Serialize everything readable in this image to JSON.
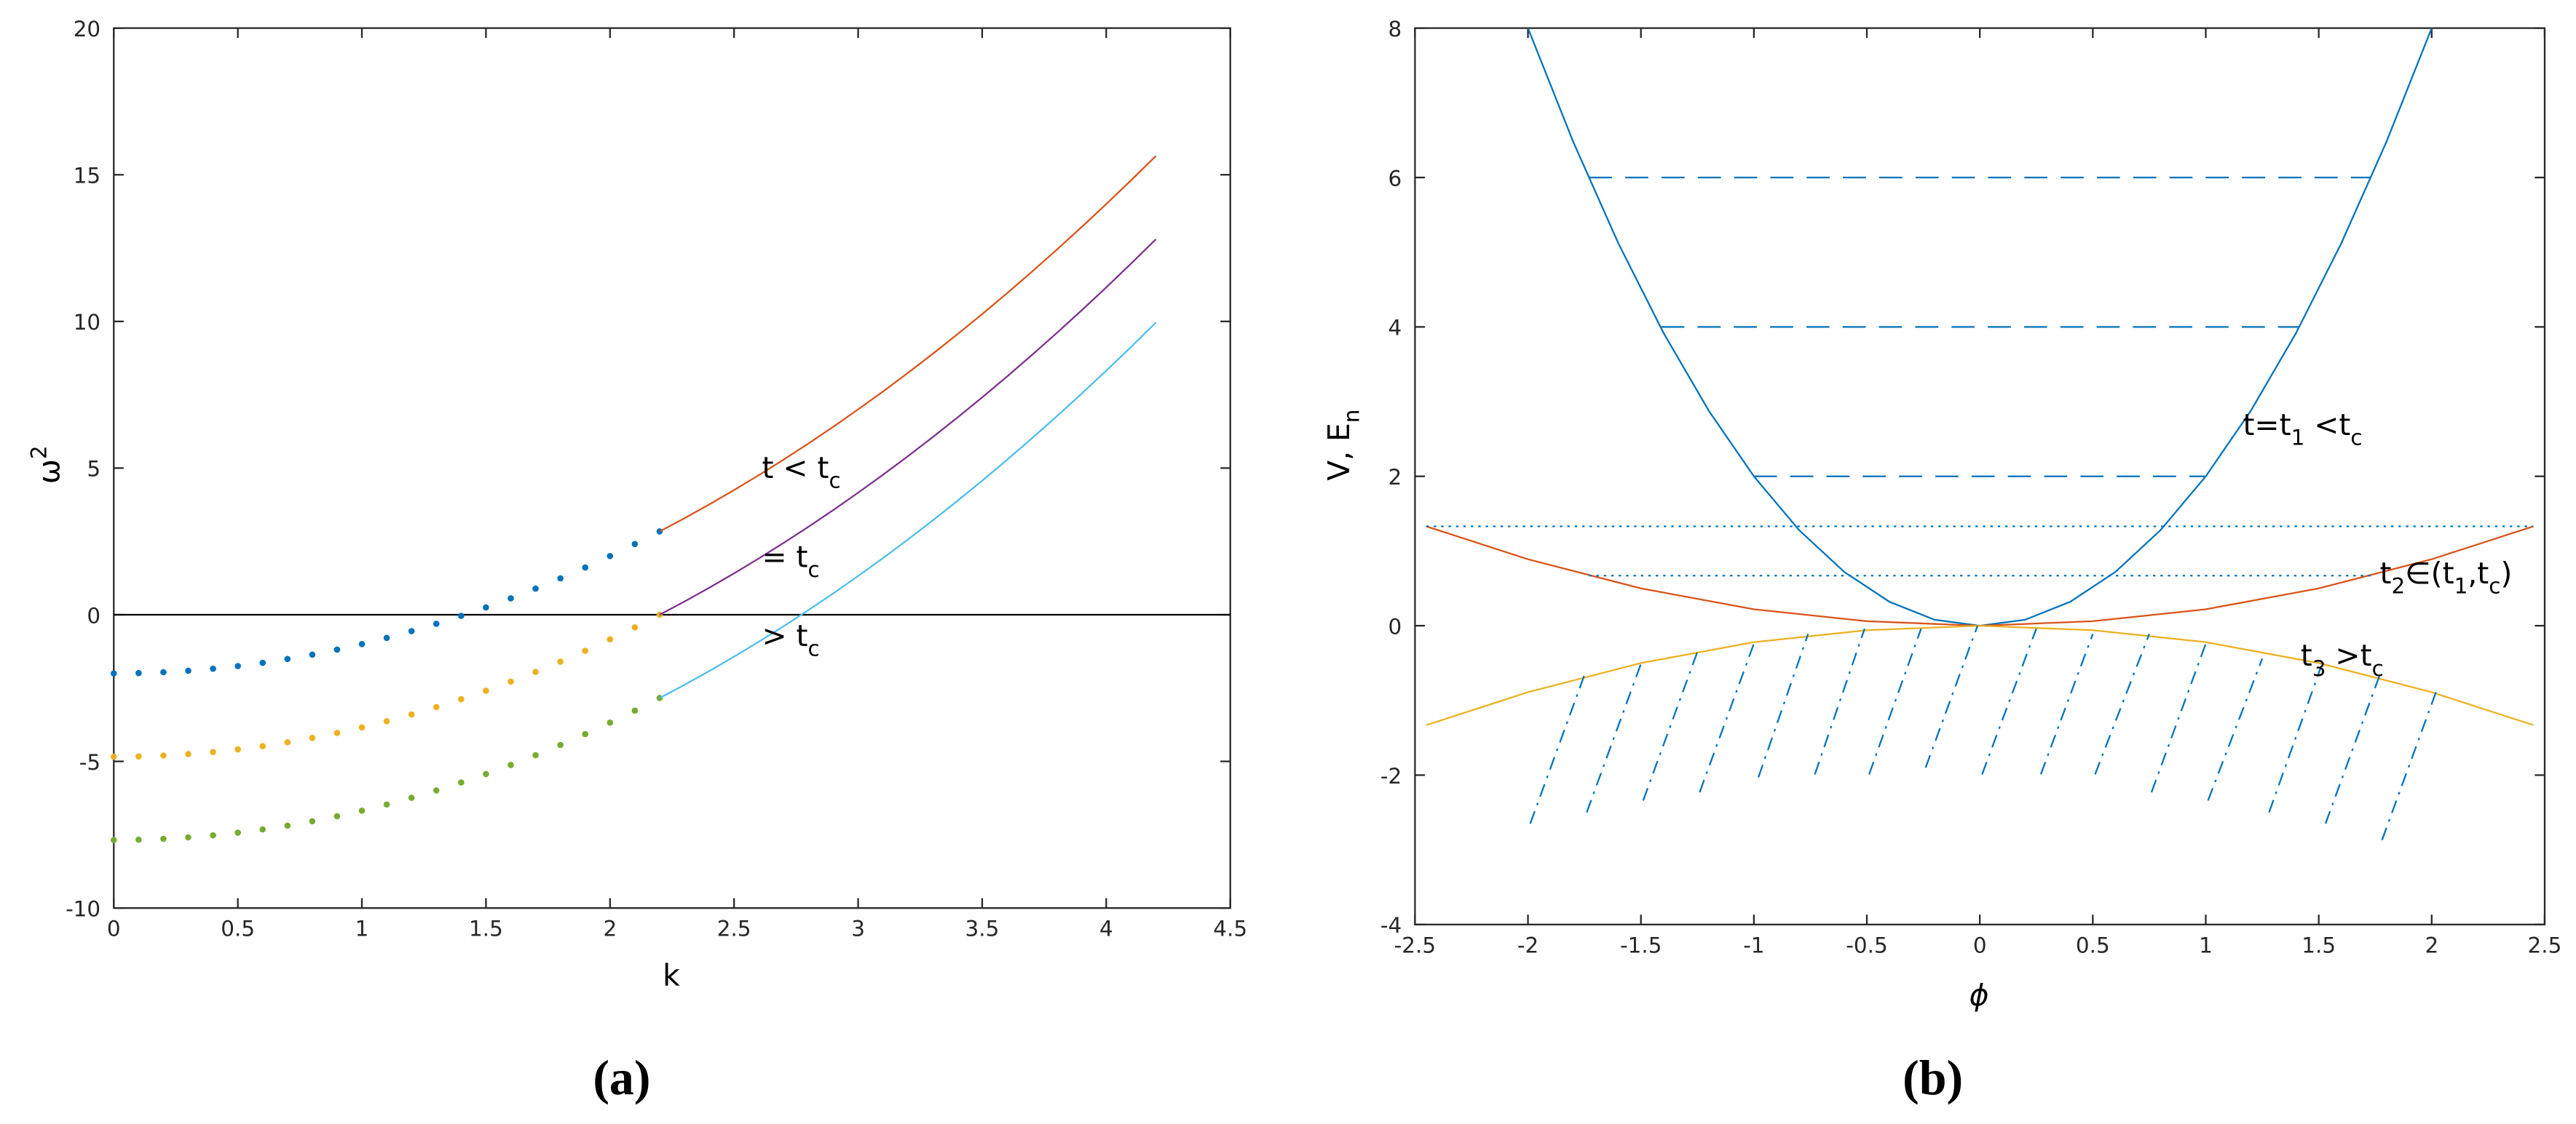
{
  "chart_data": [
    {
      "type": "line",
      "caption": "(a)",
      "xlabel": "k",
      "ylabel": [
        {
          "text": "ω"
        },
        {
          "text": "2",
          "sup": true
        }
      ],
      "xlim": [
        0,
        4.5
      ],
      "xticks": [
        0,
        0.5,
        1,
        1.5,
        2,
        2.5,
        3,
        3.5,
        4,
        4.5
      ],
      "ylim": [
        -10,
        20
      ],
      "yticks": [
        -10,
        -5,
        0,
        5,
        10,
        15,
        20
      ],
      "annotations": [
        [
          {
            "text": "t < t"
          },
          {
            "text": "c",
            "sub": true
          }
        ],
        [
          {
            "text": "= t"
          },
          {
            "text": "c",
            "sub": true
          }
        ],
        [
          {
            "text": "> t"
          },
          {
            "text": "c",
            "sub": true
          }
        ]
      ],
      "series": [
        {
          "style": "line",
          "color": "#000000",
          "x": [
            0,
            4.5
          ],
          "values": [
            0,
            0
          ]
        },
        {
          "style": "dots",
          "color": "#0072bd",
          "x": [
            0,
            0.1,
            0.2,
            0.3,
            0.4,
            0.5,
            0.6,
            0.7,
            0.8,
            0.9,
            1,
            1.1,
            1.2,
            1.3,
            1.4,
            1.5,
            1.6,
            1.7,
            1.8,
            1.9,
            2,
            2.1,
            2.2
          ],
          "values": [
            -2,
            -1.99,
            -1.96,
            -1.91,
            -1.84,
            -1.75,
            -1.64,
            -1.51,
            -1.36,
            -1.19,
            -1,
            -0.79,
            -0.56,
            -0.31,
            -0.04,
            0.25,
            0.56,
            0.89,
            1.24,
            1.61,
            2,
            2.41,
            2.84
          ]
        },
        {
          "style": "dots",
          "color": "#edb120",
          "x": [
            0,
            0.1,
            0.2,
            0.3,
            0.4,
            0.5,
            0.6,
            0.7,
            0.8,
            0.9,
            1,
            1.1,
            1.2,
            1.3,
            1.4,
            1.5,
            1.6,
            1.7,
            1.8,
            1.9,
            2,
            2.1,
            2.2
          ],
          "values": [
            -4.84,
            -4.83,
            -4.8,
            -4.75,
            -4.68,
            -4.59,
            -4.48,
            -4.35,
            -4.2,
            -4.03,
            -3.84,
            -3.63,
            -3.4,
            -3.15,
            -2.88,
            -2.59,
            -2.28,
            -1.95,
            -1.6,
            -1.23,
            -0.84,
            -0.43,
            0
          ]
        },
        {
          "style": "dots",
          "color": "#77ac30",
          "x": [
            0,
            0.1,
            0.2,
            0.3,
            0.4,
            0.5,
            0.6,
            0.7,
            0.8,
            0.9,
            1,
            1.1,
            1.2,
            1.3,
            1.4,
            1.5,
            1.6,
            1.7,
            1.8,
            1.9,
            2,
            2.1,
            2.2
          ],
          "values": [
            -7.68,
            -7.67,
            -7.64,
            -7.59,
            -7.52,
            -7.43,
            -7.32,
            -7.19,
            -7.04,
            -6.87,
            -6.68,
            -6.47,
            -6.24,
            -5.99,
            -5.72,
            -5.43,
            -5.12,
            -4.79,
            -4.44,
            -4.07,
            -3.68,
            -3.27,
            -2.84
          ]
        },
        {
          "style": "line",
          "color": "#d95319",
          "x": [
            2.2,
            2.3,
            2.4,
            2.5,
            2.6,
            2.7,
            2.8,
            2.9,
            3,
            3.1,
            3.2,
            3.3,
            3.4,
            3.5,
            3.6,
            3.7,
            3.8,
            3.9,
            4,
            4.1,
            4.2
          ],
          "values": [
            2.84,
            3.29,
            3.76,
            4.25,
            4.76,
            5.29,
            5.84,
            6.41,
            7,
            7.61,
            8.24,
            8.89,
            9.56,
            10.25,
            10.96,
            11.69,
            12.44,
            13.21,
            14,
            14.81,
            15.64
          ]
        },
        {
          "style": "line",
          "color": "#7e2f8e",
          "x": [
            2.2,
            2.3,
            2.4,
            2.5,
            2.6,
            2.7,
            2.8,
            2.9,
            3,
            3.1,
            3.2,
            3.3,
            3.4,
            3.5,
            3.6,
            3.7,
            3.8,
            3.9,
            4,
            4.1,
            4.2
          ],
          "values": [
            0,
            0.45,
            0.92,
            1.41,
            1.92,
            2.45,
            3,
            3.57,
            4.16,
            4.77,
            5.4,
            6.05,
            6.72,
            7.41,
            8.12,
            8.85,
            9.6,
            10.37,
            11.16,
            11.97,
            12.8
          ]
        },
        {
          "style": "line",
          "color": "#4dbeee",
          "x": [
            2.2,
            2.3,
            2.4,
            2.5,
            2.6,
            2.7,
            2.8,
            2.9,
            3,
            3.1,
            3.2,
            3.3,
            3.4,
            3.5,
            3.6,
            3.7,
            3.8,
            3.9,
            4,
            4.1,
            4.2
          ],
          "values": [
            -2.84,
            -2.39,
            -1.92,
            -1.43,
            -0.92,
            -0.39,
            0.16,
            0.73,
            1.32,
            1.93,
            2.56,
            3.21,
            3.88,
            4.57,
            5.28,
            6.01,
            6.76,
            7.53,
            8.32,
            9.13,
            9.96
          ]
        }
      ]
    },
    {
      "type": "line",
      "caption": "(b)",
      "xlabel": "ϕ",
      "ylabel": [
        {
          "text": "V, E"
        },
        {
          "text": "n",
          "sub": true
        }
      ],
      "xlim": [
        -2.5,
        2.5
      ],
      "xticks": [
        -2.5,
        -2,
        -1.5,
        -1,
        -0.5,
        0,
        0.5,
        1,
        1.5,
        2,
        2.5
      ],
      "ylim": [
        -4,
        8
      ],
      "yticks": [
        -4,
        -2,
        0,
        2,
        4,
        6,
        8
      ],
      "annotations": [
        [
          {
            "text": "t=t"
          },
          {
            "text": "1",
            "sub": true
          },
          {
            "text": " <t"
          },
          {
            "text": "c",
            "sub": true
          }
        ],
        [
          {
            "text": "t"
          },
          {
            "text": "2",
            "sub": true
          },
          {
            "text": "∈(t"
          },
          {
            "text": "1",
            "sub": true
          },
          {
            "text": ",t"
          },
          {
            "text": "c",
            "sub": true
          },
          {
            "text": ")"
          }
        ],
        [
          {
            "text": "t"
          },
          {
            "text": "3",
            "sub": true
          },
          {
            "text": " >t"
          },
          {
            "text": "c",
            "sub": true
          }
        ]
      ],
      "series": [
        {
          "style": "line",
          "color": "#0072bd",
          "x": [
            -2,
            -1.8,
            -1.6,
            -1.4,
            -1.2,
            -1,
            -0.8,
            -0.6,
            -0.4,
            -0.2,
            0,
            0.2,
            0.4,
            0.6,
            0.8,
            1,
            1.2,
            1.4,
            1.6,
            1.8,
            2
          ],
          "values": [
            8,
            6.48,
            5.12,
            3.92,
            2.88,
            2,
            1.28,
            0.72,
            0.32,
            0.08,
            0,
            0.08,
            0.32,
            0.72,
            1.28,
            2,
            2.88,
            3.92,
            5.12,
            6.48,
            8
          ]
        },
        {
          "style": "line",
          "color": "#d95319",
          "x": [
            -2.45,
            -2,
            -1.5,
            -1,
            -0.5,
            0,
            0.5,
            1,
            1.5,
            2,
            2.45
          ],
          "values": [
            1.33,
            0.89,
            0.5,
            0.22,
            0.06,
            0,
            0.06,
            0.22,
            0.5,
            0.89,
            1.33
          ]
        },
        {
          "style": "line",
          "color": "#edb120",
          "x": [
            -2.45,
            -2,
            -1.5,
            -1,
            -0.5,
            0,
            0.5,
            1,
            1.5,
            2,
            2.45
          ],
          "values": [
            -1.33,
            -0.89,
            -0.5,
            -0.22,
            -0.06,
            0,
            -0.06,
            -0.22,
            -0.5,
            -0.89,
            -1.33
          ]
        },
        {
          "style": "dashed",
          "color": "#0072bd",
          "x": [
            -1.73,
            1.73,
            null,
            -1.41,
            1.41,
            null,
            -1,
            1
          ],
          "values": [
            6,
            6,
            null,
            4,
            4,
            null,
            2,
            2
          ]
        },
        {
          "style": "dotted",
          "color": "#0072bd",
          "x": [
            -2.45,
            2.45,
            null,
            -1.73,
            1.73
          ],
          "values": [
            1.33,
            1.33,
            null,
            0.67,
            0.67
          ]
        },
        {
          "style": "dashdot",
          "color": "#0072bd",
          "x": [
            -1.99,
            -1.75,
            null,
            -1.74,
            -1.5,
            null,
            -1.49,
            -1.25,
            null,
            -1.24,
            -1,
            null,
            -0.98,
            -0.76,
            null,
            -0.73,
            -0.51,
            null,
            -0.49,
            -0.26,
            null,
            -0.24,
            -0.01,
            null,
            0.01,
            0.25,
            null,
            0.27,
            0.5,
            null,
            0.51,
            0.75,
            null,
            0.76,
            1,
            null,
            1.01,
            1.25,
            null,
            1.28,
            1.51,
            null,
            1.53,
            1.77,
            null,
            1.78,
            2.02
          ],
          "values": [
            -2.65,
            -0.66,
            null,
            -2.5,
            -0.51,
            null,
            -2.34,
            -0.35,
            null,
            -2.23,
            -0.24,
            null,
            -2.03,
            -0.11,
            null,
            -1.99,
            -0.04,
            null,
            -1.99,
            -0.04,
            null,
            -1.9,
            0,
            null,
            -1.99,
            -0.04,
            null,
            -1.99,
            -0.11,
            null,
            -1.99,
            -0.11,
            null,
            -2.23,
            -0.24,
            null,
            -2.34,
            -0.44,
            null,
            -2.5,
            -0.55,
            null,
            -2.65,
            -0.66,
            null,
            -2.87,
            -0.88
          ]
        }
      ]
    }
  ]
}
